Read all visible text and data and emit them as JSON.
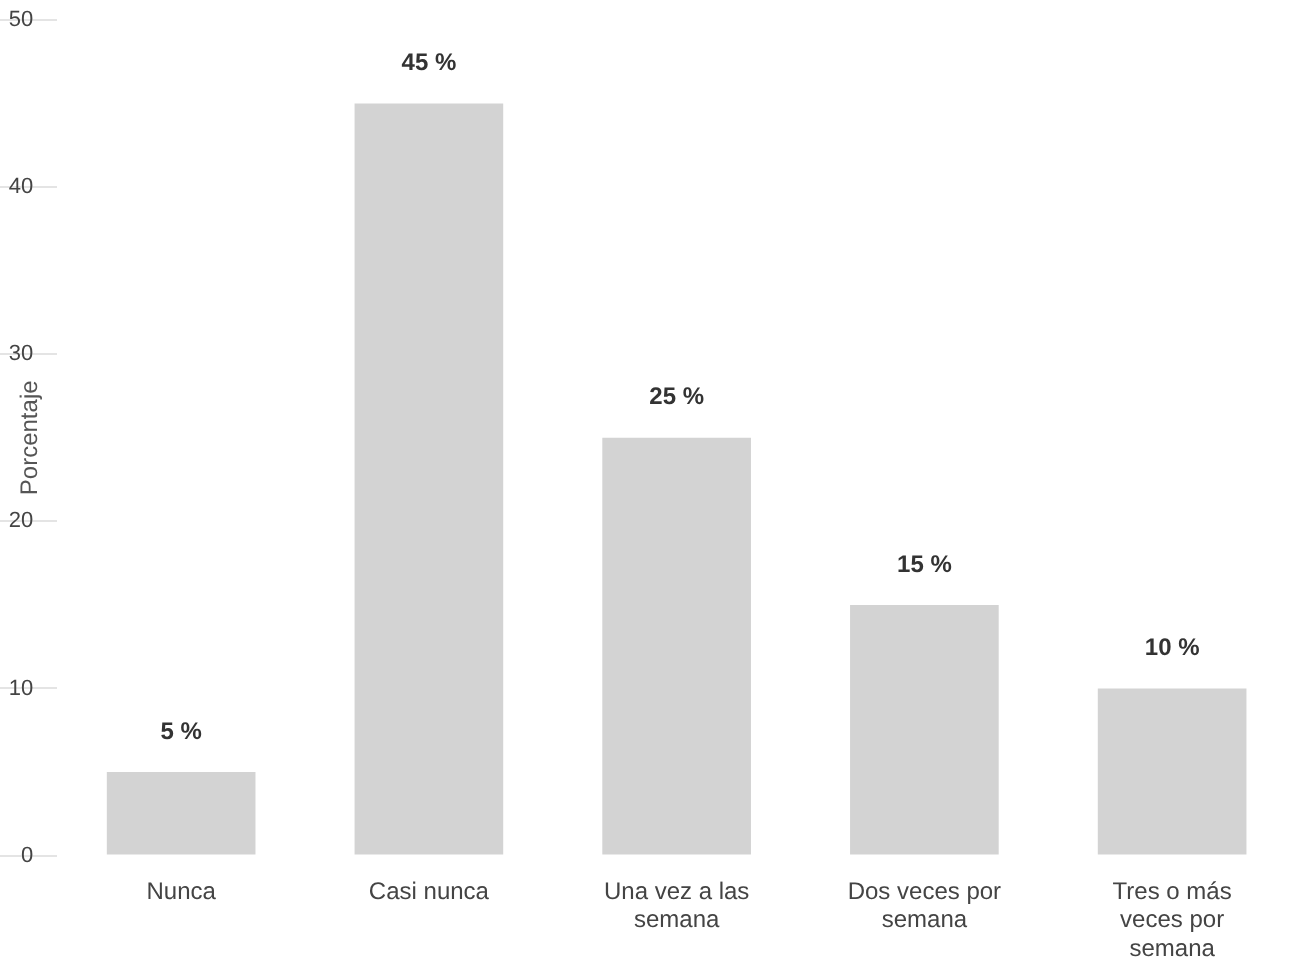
{
  "chart_data": {
    "type": "bar",
    "ylabel": "Porcentaje",
    "categories": [
      "Nunca",
      "Casi nunca",
      "Una vez a las semana",
      "Dos veces por semana",
      "Tres o más veces por semana"
    ],
    "values": [
      5,
      45,
      25,
      15,
      10
    ],
    "color": "#d3d3d3",
    "value_labels": [
      "5 %",
      "45 %",
      "25 %",
      "15 %",
      "10 %"
    ],
    "ylim": [
      0,
      50
    ],
    "yticks": [
      0,
      10,
      20,
      30,
      40,
      50
    ],
    "grid": false,
    "legend": false
  }
}
